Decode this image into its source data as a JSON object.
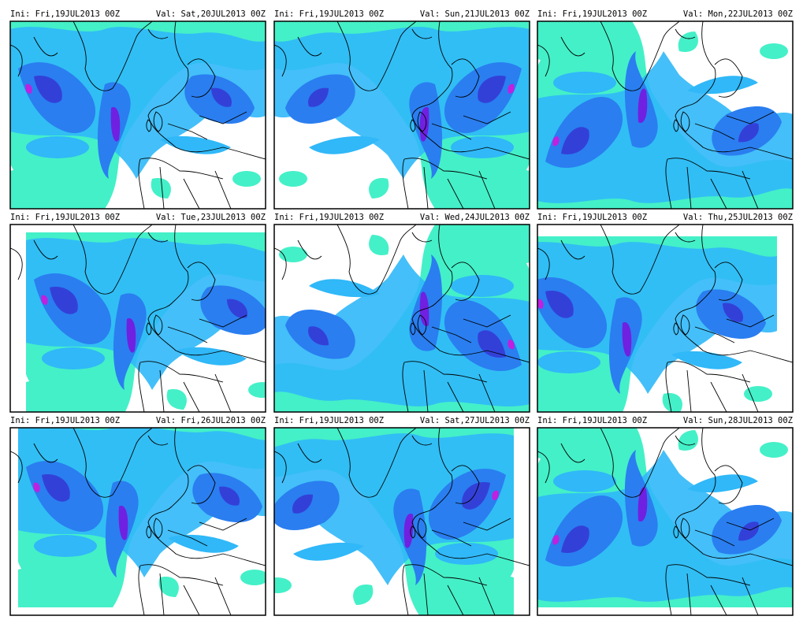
{
  "panels": [
    {
      "init": "Ini: Fri,19JUL2013 00Z",
      "valid": "Val: Sat,20JUL2013 00Z"
    },
    {
      "init": "Ini: Fri,19JUL2013 00Z",
      "valid": "Val: Sun,21JUL2013 00Z"
    },
    {
      "init": "Ini: Fri,19JUL2013 00Z",
      "valid": "Val: Mon,22JUL2013 00Z"
    },
    {
      "init": "Ini: Fri,19JUL2013 00Z",
      "valid": "Val: Tue,23JUL2013 00Z"
    },
    {
      "init": "Ini: Fri,19JUL2013 00Z",
      "valid": "Val: Wed,24JUL2013 00Z"
    },
    {
      "init": "Ini: Fri,19JUL2013 00Z",
      "valid": "Val: Thu,25JUL2013 00Z"
    },
    {
      "init": "Ini: Fri,19JUL2013 00Z",
      "valid": "Val: Fri,26JUL2013 00Z"
    },
    {
      "init": "Ini: Fri,19JUL2013 00Z",
      "valid": "Val: Sat,27JUL2013 00Z"
    },
    {
      "init": "Ini: Fri,19JUL2013 00Z",
      "valid": "Val: Sun,28JUL2013 00Z"
    }
  ]
}
